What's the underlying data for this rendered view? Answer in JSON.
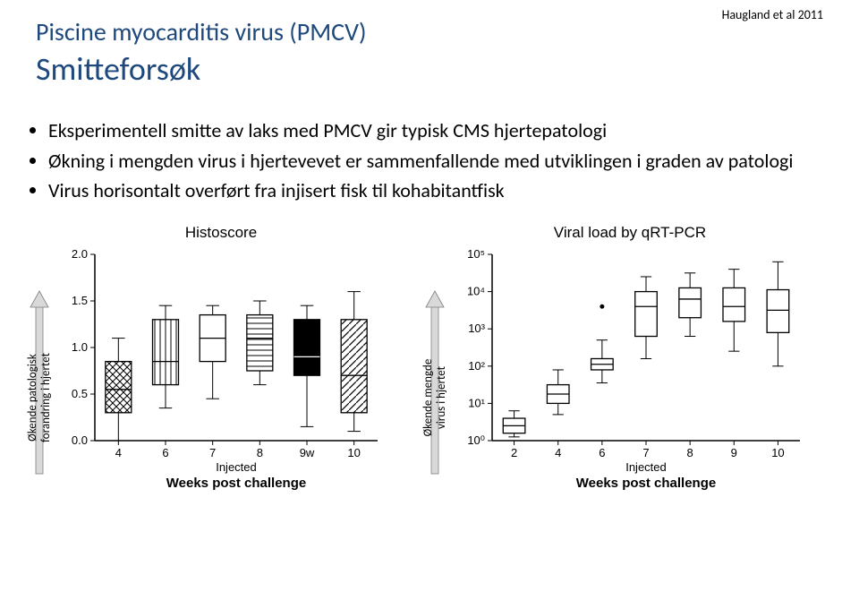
{
  "citation": "Haugland et al 2011",
  "title": {
    "line1": "Piscine myocarditis virus (PMCV)",
    "line2": "Smitteforsøk"
  },
  "bullets": [
    "Eksperimentell smitte av laks med PMCV gir typisk CMS hjertepatologi",
    "Økning i mengden virus i hjertevevet er sammenfallende med utviklingen i graden av patologi",
    "Virus horisontalt overført fra injisert fisk til kohabitantfisk"
  ],
  "arrow1_label": "Økende patologisk\nforandring i hjertet",
  "arrow2_label": "Økende mengde\nvirus i hjertet",
  "chart_histo": {
    "type": "boxplot",
    "title": "Histoscore",
    "ylim": [
      0.0,
      2.0
    ],
    "yticks": [
      0.0,
      0.5,
      1.0,
      1.5,
      2.0
    ],
    "categories": [
      "4",
      "6",
      "7",
      "8",
      "9w",
      "10"
    ],
    "sublabel": "Injected",
    "xaxis": "Weeks post challenge",
    "box_border": "#000000",
    "background": "#ffffff",
    "boxes": [
      {
        "q1": 0.3,
        "median": 0.55,
        "q3": 0.85,
        "wlo": 0.0,
        "whi": 1.1,
        "pattern": "crosshatch",
        "outliers": []
      },
      {
        "q1": 0.6,
        "median": 0.85,
        "q3": 1.3,
        "wlo": 0.35,
        "whi": 1.45,
        "pattern": "vlines",
        "outliers": []
      },
      {
        "q1": 0.85,
        "median": 1.1,
        "q3": 1.35,
        "wlo": 0.45,
        "whi": 1.45,
        "pattern": "none",
        "outliers": []
      },
      {
        "q1": 0.75,
        "median": 1.1,
        "q3": 1.35,
        "wlo": 0.6,
        "whi": 1.5,
        "pattern": "hlines",
        "outliers": []
      },
      {
        "q1": 0.7,
        "median": 0.9,
        "q3": 1.3,
        "wlo": 0.15,
        "whi": 1.45,
        "pattern": "solid",
        "outliers": []
      },
      {
        "q1": 0.3,
        "median": 0.7,
        "q3": 1.3,
        "wlo": 0.1,
        "whi": 1.6,
        "pattern": "diag",
        "outliers": []
      }
    ],
    "bar_width": 0.55,
    "axis_color": "#000000",
    "label_fontsize": 13
  },
  "chart_viral": {
    "type": "boxplot",
    "title": "Viral load by qRT-PCR",
    "ylog": true,
    "ylim": [
      1,
      100000
    ],
    "yticks": [
      "10⁰",
      "10¹",
      "10²",
      "10³",
      "10⁴",
      "10⁵"
    ],
    "categories": [
      "2",
      "4",
      "6",
      "7",
      "8",
      "9",
      "10"
    ],
    "sublabel": "Injected",
    "xaxis": "Weeks post challenge",
    "box_border": "#000000",
    "background": "#ffffff",
    "boxes": [
      {
        "q1": 0.2,
        "median": 0.4,
        "q3": 0.6,
        "wlo": 0.1,
        "whi": 0.8,
        "outliers": []
      },
      {
        "q1": 1.0,
        "median": 1.25,
        "q3": 1.5,
        "wlo": 0.7,
        "whi": 1.9,
        "outliers": []
      },
      {
        "q1": 1.9,
        "median": 2.05,
        "q3": 2.2,
        "wlo": 1.55,
        "whi": 2.7,
        "outliers": [
          3.6
        ]
      },
      {
        "q1": 2.8,
        "median": 3.6,
        "q3": 4.0,
        "wlo": 2.2,
        "whi": 4.4,
        "outliers": []
      },
      {
        "q1": 3.3,
        "median": 3.8,
        "q3": 4.1,
        "wlo": 2.8,
        "whi": 4.5,
        "outliers": []
      },
      {
        "q1": 3.2,
        "median": 3.6,
        "q3": 4.1,
        "wlo": 2.4,
        "whi": 4.6,
        "outliers": []
      },
      {
        "q1": 2.9,
        "median": 3.5,
        "q3": 4.05,
        "wlo": 2.0,
        "whi": 4.8,
        "outliers": []
      }
    ],
    "bar_width": 0.5,
    "axis_color": "#000000",
    "label_fontsize": 13
  }
}
